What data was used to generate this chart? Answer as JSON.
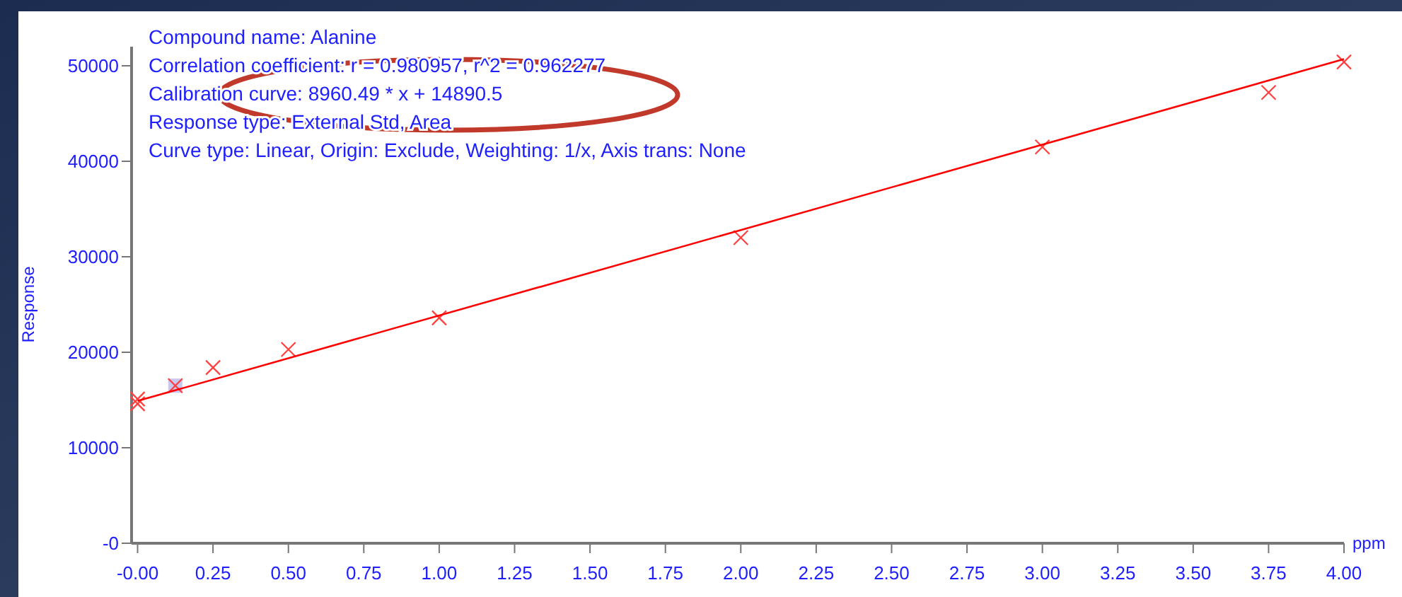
{
  "chart_data": {
    "type": "scatter",
    "ylabel": "Response",
    "xlabel": "ppm",
    "annotations": [
      "Compound name: Alanine",
      "Correlation coefficient: r = 0.980957, r^2 = 0.962277",
      "Calibration curve: 8960.49 * x + 14890.5",
      "Response type: External Std, Area",
      "Curve type: Linear, Origin: Exclude, Weighting: 1/x, Axis trans: None"
    ],
    "series": [
      {
        "color": "#ff4040",
        "x": [
          0,
          0,
          0.125,
          0.25,
          0.5,
          1,
          2,
          3,
          3.75,
          4
        ],
        "values": [
          15100,
          14600,
          16500,
          18400,
          20300,
          23600,
          32000,
          41500,
          47200,
          50400
        ]
      },
      {
        "type": "line",
        "color": "#ff0000",
        "marker": "none",
        "x": [
          0,
          4
        ],
        "values": [
          14900,
          50700
        ]
      }
    ],
    "marker": "cross",
    "grid": false,
    "xlim": [
      -0.02,
      4
    ],
    "ylim": [
      0,
      52000
    ],
    "xticks": [
      {
        "value": 0,
        "label": "-0.00"
      },
      {
        "value": 0.25,
        "label": "0.25"
      },
      {
        "value": 0.5,
        "label": "0.50"
      },
      {
        "value": 0.75,
        "label": "0.75"
      },
      {
        "value": 1,
        "label": "1.00"
      },
      {
        "value": 1.25,
        "label": "1.25"
      },
      {
        "value": 1.5,
        "label": "1.50"
      },
      {
        "value": 1.75,
        "label": "1.75"
      },
      {
        "value": 2,
        "label": "2.00"
      },
      {
        "value": 2.25,
        "label": "2.25"
      },
      {
        "value": 2.5,
        "label": "2.50"
      },
      {
        "value": 2.75,
        "label": "2.75"
      },
      {
        "value": 3,
        "label": "3.00"
      },
      {
        "value": 3.25,
        "label": "3.25"
      },
      {
        "value": 3.5,
        "label": "3.50"
      },
      {
        "value": 3.75,
        "label": "3.75"
      },
      {
        "value": 4,
        "label": "4.00"
      }
    ],
    "yticks": [
      {
        "value": 0,
        "label": "-0"
      },
      10000,
      20000,
      30000,
      40000,
      50000
    ]
  }
}
